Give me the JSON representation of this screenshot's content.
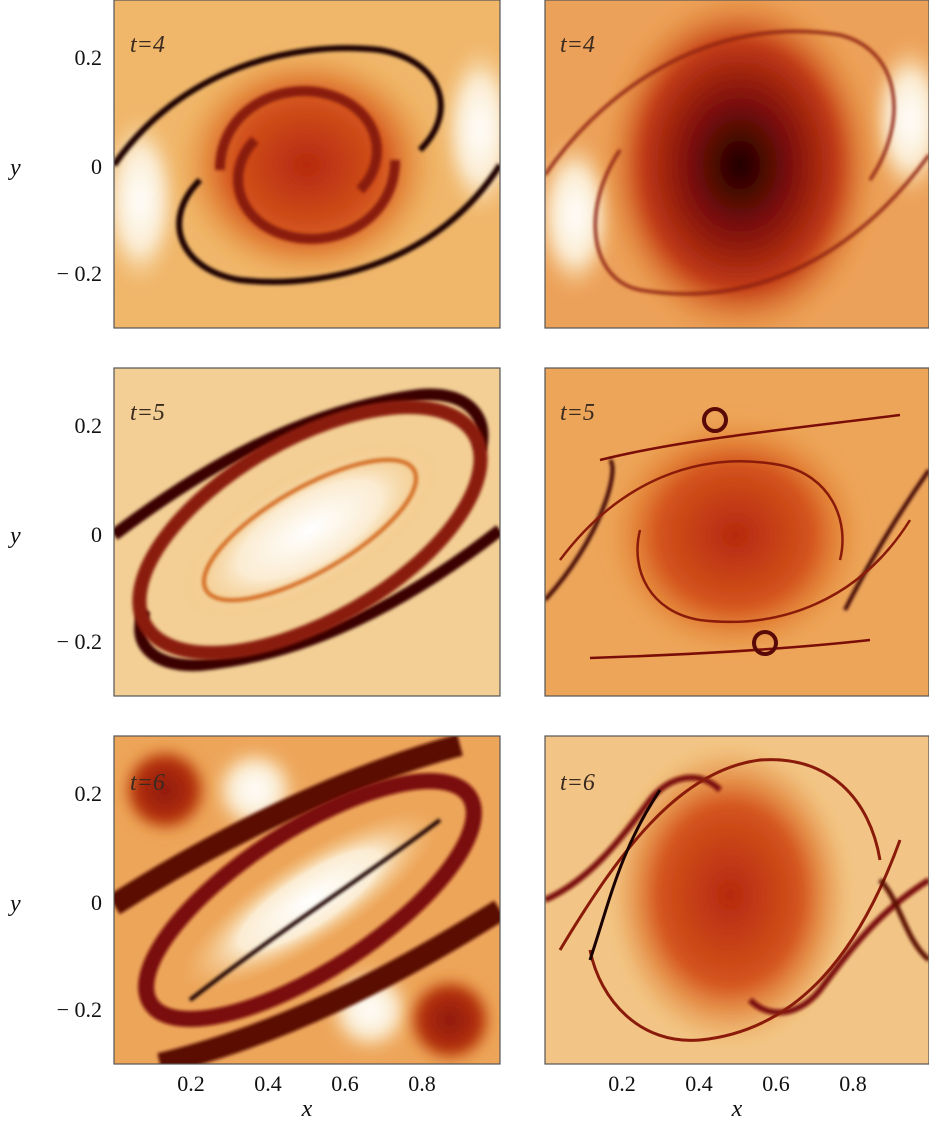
{
  "chart_data": {
    "type": "heatmap",
    "layout": "3 rows x 2 columns of contour panels",
    "xlabel": "x",
    "ylabel": "y",
    "xlim": [
      0,
      1
    ],
    "ylim": [
      -0.3,
      0.3
    ],
    "x_ticks": [
      0.2,
      0.4,
      0.6,
      0.8
    ],
    "x_tick_labels": [
      "0.2",
      "0.4",
      "0.6",
      "0.8"
    ],
    "y_ticks": [
      0.2,
      0,
      -0.2
    ],
    "y_tick_labels": [
      "0.2",
      "0",
      "− 0.2"
    ],
    "colormap": [
      "#ffffff",
      "#f3c27a",
      "#e58a2a",
      "#c23a16",
      "#7a0d08",
      "#1a0202"
    ],
    "panels": [
      {
        "row": 0,
        "col": 0,
        "label": "t=4",
        "pattern": "spiral vortex, dark spiral filaments"
      },
      {
        "row": 0,
        "col": 1,
        "label": "t=4",
        "pattern": "dark elliptical vortex core"
      },
      {
        "row": 1,
        "col": 0,
        "label": "t=5",
        "pattern": "tilted elliptical ring with light interior"
      },
      {
        "row": 1,
        "col": 1,
        "label": "t=5",
        "pattern": "vortex core with thin filaments and secondary eddies"
      },
      {
        "row": 2,
        "col": 0,
        "label": "t=6",
        "pattern": "elongated tilted band with dark corner blobs"
      },
      {
        "row": 2,
        "col": 1,
        "label": "t=6",
        "pattern": "turbulent core with wavy filaments"
      }
    ]
  }
}
